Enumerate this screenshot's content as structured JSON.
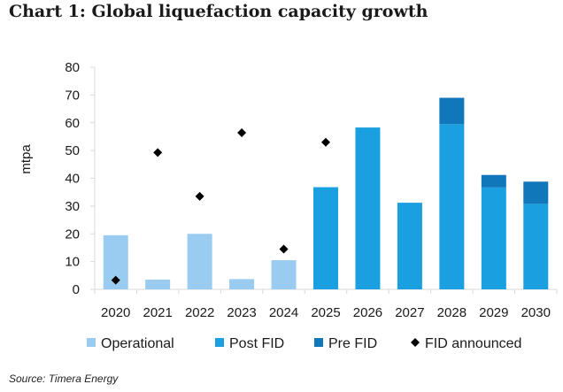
{
  "title": "Chart 1: Global liquefaction capacity growth",
  "source": "Source: Timera Energy",
  "colors": {
    "operational": "#99ccf0",
    "post_fid": "#1aa0e0",
    "pre_fid": "#1177bb",
    "fid_announced": "#000000",
    "gridline": "#d9d9d9"
  },
  "chart_data": {
    "type": "bar",
    "title": "Chart 1: Global liquefaction capacity growth",
    "xlabel": "",
    "ylabel": "mtpa",
    "ylim": [
      0,
      80
    ],
    "yticks": [
      "0",
      "10",
      "20",
      "30",
      "40",
      "50",
      "60",
      "70",
      "80"
    ],
    "grid": false,
    "stacked": true,
    "legend_position": "bottom",
    "categories": [
      "2020",
      "2021",
      "2022",
      "2023",
      "2024",
      "2025",
      "2026",
      "2027",
      "2028",
      "2029",
      "2030"
    ],
    "series": [
      {
        "name": "Operational",
        "kind": "bar",
        "values": [
          19.5,
          3.5,
          20,
          3.7,
          10.5,
          0,
          0,
          0,
          0,
          0,
          0
        ]
      },
      {
        "name": "Post FID",
        "kind": "bar",
        "values": [
          0,
          0,
          0,
          0,
          0,
          36.8,
          58.3,
          31.2,
          59.5,
          36.7,
          30.8
        ]
      },
      {
        "name": "Pre FID",
        "kind": "bar",
        "values": [
          0,
          0,
          0,
          0,
          0,
          0,
          0,
          0,
          9.5,
          4.5,
          8.0
        ]
      },
      {
        "name": "FID announced",
        "kind": "marker",
        "values": [
          3.3,
          49.3,
          33.5,
          56.4,
          14.5,
          53.0,
          null,
          null,
          null,
          null,
          null
        ]
      }
    ]
  }
}
